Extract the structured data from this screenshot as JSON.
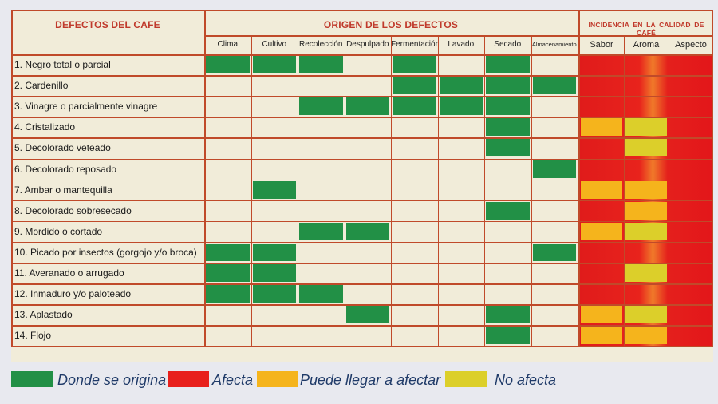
{
  "header": {
    "defects_title": "DEFECTOS DEL CAFE",
    "origin_title": "ORIGEN DE LOS DEFECTOS",
    "impact_title": "INCIDENCIA EN LA CALIDAD DE CAFÉ"
  },
  "origin_columns": [
    "Clima",
    "Cultivo",
    "Recolección",
    "Despulpado",
    "Fermentación",
    "Lavado",
    "Secado",
    "Almacenamiento"
  ],
  "impact_columns": [
    "Sabor",
    "Aroma",
    "Aspecto"
  ],
  "colors": {
    "origin": "#229046",
    "affects": "#e8201c",
    "may_affect": "#f5b41c",
    "no_affect": "#dccf2a",
    "empty": "#f1ecd9",
    "grid": "#c04a2a",
    "title": "#c0392b"
  },
  "rows": [
    {
      "label": "1. Negro total o parcial",
      "origin": [
        1,
        1,
        1,
        0,
        1,
        0,
        1,
        0
      ],
      "impact": [
        "A",
        "A",
        "A"
      ]
    },
    {
      "label": "2. Cardenillo",
      "origin": [
        0,
        0,
        0,
        0,
        1,
        1,
        1,
        1
      ],
      "impact": [
        "A",
        "A",
        "A"
      ]
    },
    {
      "label": "3. Vinagre o parcialmente vinagre",
      "origin": [
        0,
        0,
        1,
        1,
        1,
        1,
        1,
        0
      ],
      "impact": [
        "A",
        "A",
        "A"
      ]
    },
    {
      "label": "4. Cristalizado",
      "origin": [
        0,
        0,
        0,
        0,
        0,
        0,
        1,
        0
      ],
      "impact": [
        "P",
        "N",
        "A"
      ]
    },
    {
      "label": "5. Decolorado veteado",
      "origin": [
        0,
        0,
        0,
        0,
        0,
        0,
        1,
        0
      ],
      "impact": [
        "A",
        "N",
        "A"
      ]
    },
    {
      "label": "6. Decolorado reposado",
      "origin": [
        0,
        0,
        0,
        0,
        0,
        0,
        0,
        1
      ],
      "impact": [
        "A",
        "A",
        "A"
      ]
    },
    {
      "label": "7. Ambar o mantequilla",
      "origin": [
        0,
        1,
        0,
        0,
        0,
        0,
        0,
        0
      ],
      "impact": [
        "P",
        "P",
        "A"
      ]
    },
    {
      "label": "8. Decolorado sobresecado",
      "origin": [
        0,
        0,
        0,
        0,
        0,
        0,
        1,
        0
      ],
      "impact": [
        "A",
        "P",
        "A"
      ]
    },
    {
      "label": "9. Mordido o cortado",
      "origin": [
        0,
        0,
        1,
        1,
        0,
        0,
        0,
        0
      ],
      "impact": [
        "P",
        "N",
        "A"
      ]
    },
    {
      "label": "10. Picado por insectos (gorgojo y/o broca)",
      "origin": [
        1,
        1,
        0,
        0,
        0,
        0,
        0,
        1
      ],
      "impact": [
        "A",
        "A",
        "A"
      ]
    },
    {
      "label": "11. Averanado o arrugado",
      "origin": [
        1,
        1,
        0,
        0,
        0,
        0,
        0,
        0
      ],
      "impact": [
        "A",
        "N",
        "A"
      ]
    },
    {
      "label": "12. Inmaduro y/o paloteado",
      "origin": [
        1,
        1,
        1,
        0,
        0,
        0,
        0,
        0
      ],
      "impact": [
        "A",
        "A",
        "A"
      ]
    },
    {
      "label": "13. Aplastado",
      "origin": [
        0,
        0,
        0,
        1,
        0,
        0,
        1,
        0
      ],
      "impact": [
        "P",
        "N",
        "A"
      ]
    },
    {
      "label": "14. Flojo",
      "origin": [
        0,
        0,
        0,
        0,
        0,
        0,
        1,
        0
      ],
      "impact": [
        "P",
        "P",
        "A"
      ]
    }
  ],
  "legend": [
    {
      "key": "origin",
      "label": "Donde se origina"
    },
    {
      "key": "affects",
      "label": "Afecta"
    },
    {
      "key": "may_affect",
      "label": "Puede llegar a afectar"
    },
    {
      "key": "no_affect",
      "label": "No afecta"
    }
  ]
}
